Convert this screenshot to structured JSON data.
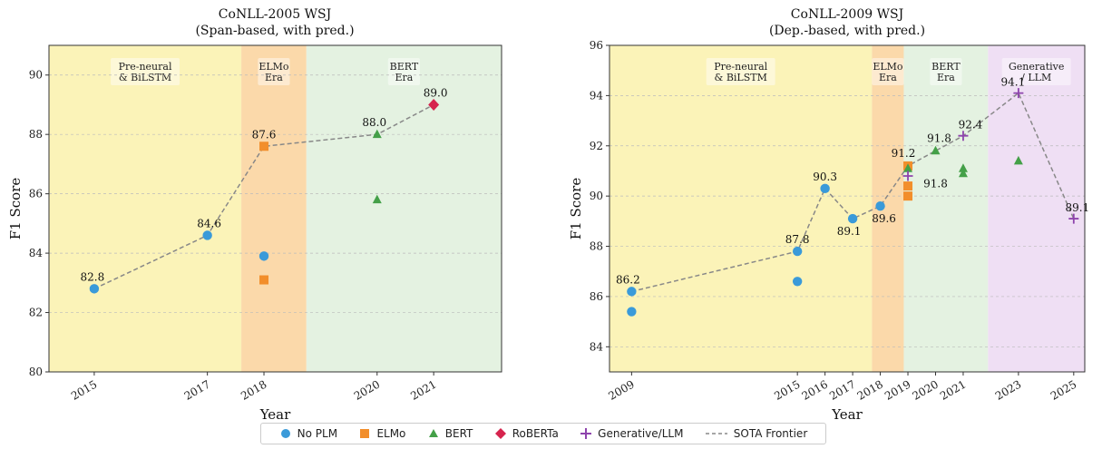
{
  "legend": {
    "items": [
      {
        "label": "No PLM",
        "marker": "circle",
        "color": "#3a9ad9"
      },
      {
        "label": "ELMo",
        "marker": "square",
        "color": "#f28e2b"
      },
      {
        "label": "BERT",
        "marker": "triangle",
        "color": "#44a048"
      },
      {
        "label": "RoBERTa",
        "marker": "diamond",
        "color": "#d6244e"
      },
      {
        "label": "Generative/LLM",
        "marker": "plus",
        "color": "#8e44ad"
      },
      {
        "label": "SOTA Frontier",
        "marker": "dash",
        "color": "#888888"
      }
    ]
  },
  "chart_data": [
    {
      "type": "scatter",
      "title": "CoNLL-2005 WSJ",
      "subtitle": "(Span-based, with pred.)",
      "xlabel": "Year",
      "ylabel": "F1 Score",
      "xlim": [
        2014.2,
        2022.2
      ],
      "ylim": [
        80,
        91
      ],
      "xticks": [
        "2015",
        "2017",
        "2018",
        "2020",
        "2021"
      ],
      "yticks": [
        80,
        82,
        84,
        86,
        88,
        90
      ],
      "grid": "horizontal dashed",
      "eras": [
        {
          "label": "Pre-neural\n& BiLSTM",
          "start": 2014.2,
          "end": 2017.6,
          "color": "#fbf3b8"
        },
        {
          "label": "ELMo\nEra",
          "start": 2017.6,
          "end": 2018.75,
          "color": "#fbd9aa"
        },
        {
          "label": "BERT\nEra",
          "start": 2018.75,
          "end": 2022.2,
          "color": "#e4f2e1"
        }
      ],
      "series": [
        {
          "name": "No PLM",
          "marker": "circle",
          "points": [
            {
              "x": 2015,
              "y": 82.8
            },
            {
              "x": 2017,
              "y": 84.6
            },
            {
              "x": 2018,
              "y": 83.9
            }
          ]
        },
        {
          "name": "ELMo",
          "marker": "square",
          "points": [
            {
              "x": 2018,
              "y": 87.6
            },
            {
              "x": 2018,
              "y": 83.1
            }
          ]
        },
        {
          "name": "BERT",
          "marker": "triangle",
          "points": [
            {
              "x": 2020,
              "y": 88.0
            },
            {
              "x": 2020,
              "y": 85.8
            }
          ]
        },
        {
          "name": "RoBERTa",
          "marker": "diamond",
          "points": [
            {
              "x": 2021,
              "y": 89.0
            }
          ]
        },
        {
          "name": "Generative/LLM",
          "marker": "plus",
          "points": []
        }
      ],
      "frontier": [
        {
          "x": 2015,
          "y": 82.8
        },
        {
          "x": 2017,
          "y": 84.6
        },
        {
          "x": 2018,
          "y": 87.6
        },
        {
          "x": 2020,
          "y": 88.0
        },
        {
          "x": 2021,
          "y": 89.0
        }
      ],
      "annotations": [
        {
          "x": 2015,
          "y": 82.8,
          "text": "82.8"
        },
        {
          "x": 2017,
          "y": 84.6,
          "text": "84.6"
        },
        {
          "x": 2018,
          "y": 87.6,
          "text": "87.6"
        },
        {
          "x": 2020,
          "y": 88.0,
          "text": "88.0"
        },
        {
          "x": 2021,
          "y": 89.0,
          "text": "89.0"
        }
      ]
    },
    {
      "type": "scatter",
      "title": "CoNLL-2009 WSJ",
      "subtitle": "(Dep.-based, with pred.)",
      "xlabel": "Year",
      "ylabel": "F1 Score",
      "xlim": [
        2008.2,
        2025.4
      ],
      "ylim": [
        83,
        96
      ],
      "xticks": [
        "2009",
        "2015",
        "2016",
        "2017",
        "2018",
        "2019",
        "2020",
        "2021",
        "2023",
        "2025"
      ],
      "yticks": [
        84,
        86,
        88,
        90,
        92,
        94,
        96
      ],
      "grid": "horizontal dashed",
      "eras": [
        {
          "label": "Pre-neural\n& BiLSTM",
          "start": 2008.2,
          "end": 2017.7,
          "color": "#fbf3b8"
        },
        {
          "label": "ELMo\nEra",
          "start": 2017.7,
          "end": 2018.85,
          "color": "#fbd9aa"
        },
        {
          "label": "BERT\nEra",
          "start": 2018.85,
          "end": 2021.9,
          "color": "#e4f2e1"
        },
        {
          "label": "Generative\n/ LLM",
          "start": 2021.9,
          "end": 2025.4,
          "color": "#efdff4"
        }
      ],
      "series": [
        {
          "name": "No PLM",
          "marker": "circle",
          "points": [
            {
              "x": 2009,
              "y": 86.2
            },
            {
              "x": 2009,
              "y": 85.4
            },
            {
              "x": 2015,
              "y": 87.8
            },
            {
              "x": 2015,
              "y": 86.6
            },
            {
              "x": 2016,
              "y": 90.3
            },
            {
              "x": 2017,
              "y": 89.1
            },
            {
              "x": 2018,
              "y": 89.6
            }
          ]
        },
        {
          "name": "ELMo",
          "marker": "square",
          "points": [
            {
              "x": 2019,
              "y": 91.2
            },
            {
              "x": 2019,
              "y": 90.4
            },
            {
              "x": 2019,
              "y": 90.0
            }
          ]
        },
        {
          "name": "BERT",
          "marker": "triangle",
          "points": [
            {
              "x": 2019,
              "y": 91.1
            },
            {
              "x": 2020,
              "y": 91.8
            },
            {
              "x": 2021,
              "y": 91.1
            },
            {
              "x": 2021,
              "y": 90.9
            },
            {
              "x": 2023,
              "y": 91.4
            }
          ]
        },
        {
          "name": "RoBERTa",
          "marker": "diamond",
          "points": []
        },
        {
          "name": "Generative/LLM",
          "marker": "plus",
          "points": [
            {
              "x": 2019,
              "y": 90.8
            },
            {
              "x": 2021,
              "y": 92.4
            },
            {
              "x": 2023,
              "y": 94.1
            },
            {
              "x": 2025,
              "y": 89.1
            }
          ]
        }
      ],
      "frontier": [
        {
          "x": 2009,
          "y": 86.2
        },
        {
          "x": 2015,
          "y": 87.8
        },
        {
          "x": 2016,
          "y": 90.3
        },
        {
          "x": 2017,
          "y": 89.1
        },
        {
          "x": 2018,
          "y": 89.6
        },
        {
          "x": 2019,
          "y": 91.2
        },
        {
          "x": 2020,
          "y": 91.8
        },
        {
          "x": 2021,
          "y": 92.4
        },
        {
          "x": 2023,
          "y": 94.1
        },
        {
          "x": 2025,
          "y": 89.1
        }
      ],
      "annotations": [
        {
          "x": 2009,
          "y": 86.2,
          "text": "86.2"
        },
        {
          "x": 2015,
          "y": 87.8,
          "text": "87.8"
        },
        {
          "x": 2016,
          "y": 90.3,
          "text": "90.3"
        },
        {
          "x": 2017,
          "y": 89.1,
          "text": "89.1"
        },
        {
          "x": 2018,
          "y": 89.6,
          "text": "89.6"
        },
        {
          "x": 2019,
          "y": 91.2,
          "text": "91.2"
        },
        {
          "x": 2020,
          "y": 91.8,
          "text": "91.8"
        },
        {
          "x": 2020,
          "y": 91.8,
          "text": "91.8"
        },
        {
          "x": 2021,
          "y": 92.4,
          "text": "92.4"
        },
        {
          "x": 2023,
          "y": 94.1,
          "text": "94.1"
        },
        {
          "x": 2025,
          "y": 89.1,
          "text": "89.1"
        }
      ]
    }
  ]
}
